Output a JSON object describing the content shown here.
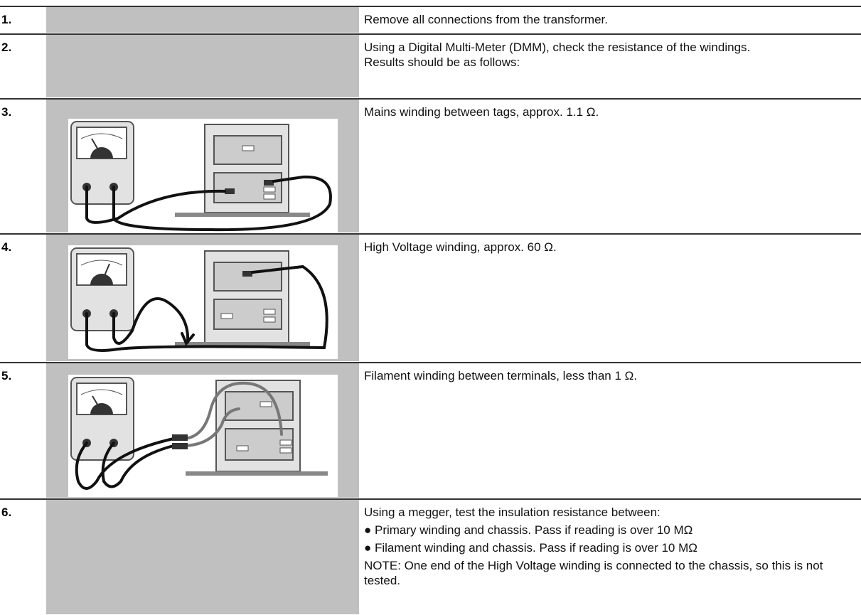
{
  "steps": [
    {
      "number": "1.",
      "text": [
        "Remove all connections from the transformer."
      ]
    },
    {
      "number": "2.",
      "text": [
        "Using a Digital Multi-Meter (DMM), check the resistance of the windings.",
        "Results should be as follows:"
      ]
    },
    {
      "number": "3.",
      "text": [
        "Mains winding between tags, approx. 1.1 Ω."
      ]
    },
    {
      "number": "4.",
      "text": [
        "High Voltage winding, approx. 60 Ω."
      ]
    },
    {
      "number": "5.",
      "text": [
        "Filament winding between terminals, less than 1 Ω."
      ]
    },
    {
      "number": "6.",
      "text": [
        "Using a megger, test the insulation resistance between:",
        "● Primary winding and chassis. Pass if reading is over 10 MΩ",
        "● Filament winding and chassis. Pass if reading is over 10 MΩ",
        "NOTE: One end of the High Voltage winding is connected to the chassis, so this is not tested."
      ]
    }
  ]
}
